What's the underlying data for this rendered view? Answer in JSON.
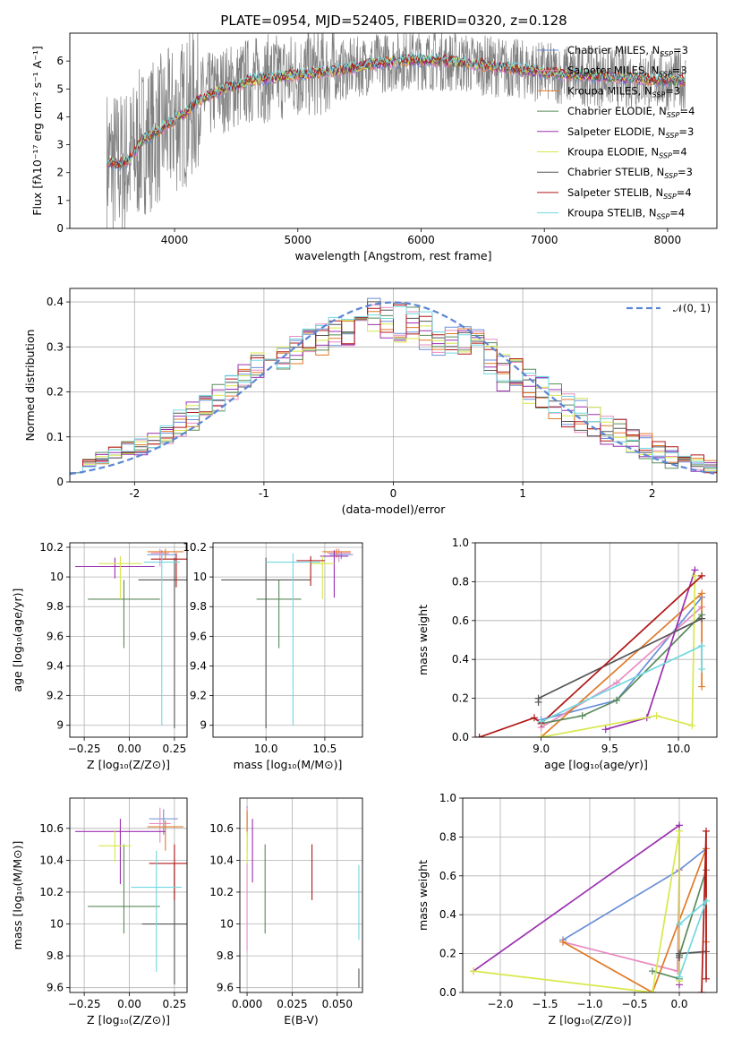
{
  "figure_title": "PLATE=0954, MJD=52405, FIBERID=0320, z=0.128",
  "colors": {
    "chabrier_miles": "#6a8fd8",
    "salpeter_miles": "#e88cc0",
    "kroupa_miles": "#e07a28",
    "chabrier_elodie": "#5a8a5a",
    "salpeter_elodie": "#9a30b0",
    "kroupa_elodie": "#d8e84a",
    "chabrier_stelib": "#555555",
    "salpeter_stelib": "#b01818",
    "kroupa_stelib": "#70d8e0",
    "observed": "#808080",
    "gaussian": "#5b86d6"
  },
  "legend_spectrum": [
    {
      "label": "Chabrier MILES, N",
      "sub": "SSP",
      "tail": "=3",
      "color": "#6a8fd8"
    },
    {
      "label": "Salpeter MILES, N",
      "sub": "SSP",
      "tail": "=3",
      "color": "#e88cc0"
    },
    {
      "label": "Kroupa MILES, N",
      "sub": "SSP",
      "tail": "=3",
      "color": "#e07a28"
    },
    {
      "label": "Chabrier ELODIE, N",
      "sub": "SSP",
      "tail": "=4",
      "color": "#5a8a5a"
    },
    {
      "label": "Salpeter ELODIE, N",
      "sub": "SSP",
      "tail": "=3",
      "color": "#9a30b0"
    },
    {
      "label": "Kroupa ELODIE, N",
      "sub": "SSP",
      "tail": "=4",
      "color": "#d8e84a"
    },
    {
      "label": "Chabrier STELIB, N",
      "sub": "SSP",
      "tail": "=3",
      "color": "#555555"
    },
    {
      "label": "Salpeter STELIB, N",
      "sub": "SSP",
      "tail": "=4",
      "color": "#b01818"
    },
    {
      "label": "Kroupa STELIB, N",
      "sub": "SSP",
      "tail": "=4",
      "color": "#70d8e0"
    }
  ],
  "legend_hist": {
    "label": "𝒩(0, 1)"
  },
  "chart_data": [
    {
      "id": "spectrum",
      "type": "line",
      "title": "PLATE=0954, MJD=52405, FIBERID=0320, z=0.128",
      "xlabel": "wavelength [Angstrom, rest frame]",
      "ylabel": "Flux [fλ10⁻¹⁷ erg cm⁻² s⁻¹ A⁻¹]",
      "xlim": [
        3150,
        8400
      ],
      "ylim": [
        0,
        7
      ],
      "xticks": [
        4000,
        5000,
        6000,
        7000,
        8000
      ],
      "yticks": [
        0,
        1,
        2,
        3,
        4,
        5,
        6
      ],
      "grid": false,
      "legend_position": "right",
      "model_continuum": {
        "x": [
          3450,
          3550,
          3650,
          3700,
          3750,
          3800,
          3900,
          4000,
          4100,
          4200,
          4300,
          4400,
          4500,
          4600,
          4800,
          5000,
          5200,
          5400,
          5600,
          5800,
          6000,
          6200,
          6400,
          6600,
          6800,
          7000,
          7200,
          7400,
          7600,
          7800,
          8000,
          8150
        ],
        "y": [
          2.4,
          2.3,
          2.5,
          2.9,
          3.2,
          3.3,
          3.6,
          3.9,
          4.2,
          4.6,
          4.8,
          5.0,
          5.1,
          5.3,
          5.4,
          5.5,
          5.6,
          5.7,
          5.9,
          6.0,
          6.05,
          6.0,
          5.9,
          5.8,
          5.7,
          5.6,
          5.5,
          5.45,
          5.4,
          5.35,
          5.3,
          5.3
        ]
      }
    },
    {
      "id": "residual_histogram",
      "type": "bar",
      "xlabel": "(data-model)/error",
      "ylabel": "Normed distribution",
      "xlim": [
        -2.5,
        2.5
      ],
      "ylim": [
        0,
        0.43
      ],
      "xticks": [
        -2,
        -1,
        0,
        1,
        2
      ],
      "yticks": [
        0.0,
        0.1,
        0.2,
        0.3,
        0.4
      ],
      "grid": true,
      "legend_position": "top-right",
      "reference_curve": {
        "name": "𝒩(0, 1)",
        "mean": 0,
        "sigma": 1
      },
      "bin_centers": [
        -2.45,
        -2.35,
        -2.25,
        -2.15,
        -2.05,
        -1.95,
        -1.85,
        -1.75,
        -1.65,
        -1.55,
        -1.45,
        -1.35,
        -1.25,
        -1.15,
        -1.05,
        -0.95,
        -0.85,
        -0.75,
        -0.65,
        -0.55,
        -0.45,
        -0.35,
        -0.25,
        -0.15,
        -0.05,
        0.05,
        0.15,
        0.25,
        0.35,
        0.45,
        0.55,
        0.65,
        0.75,
        0.85,
        0.95,
        1.05,
        1.15,
        1.25,
        1.35,
        1.45,
        1.55,
        1.65,
        1.75,
        1.85,
        1.95,
        2.05,
        2.15,
        2.25,
        2.35,
        2.45
      ],
      "envelope_high": [
        0.03,
        0.05,
        0.07,
        0.08,
        0.09,
        0.1,
        0.11,
        0.13,
        0.16,
        0.18,
        0.2,
        0.22,
        0.24,
        0.27,
        0.29,
        0.3,
        0.31,
        0.33,
        0.35,
        0.36,
        0.37,
        0.38,
        0.4,
        0.41,
        0.4,
        0.4,
        0.39,
        0.38,
        0.37,
        0.36,
        0.35,
        0.34,
        0.32,
        0.3,
        0.28,
        0.26,
        0.24,
        0.22,
        0.2,
        0.19,
        0.17,
        0.15,
        0.14,
        0.12,
        0.11,
        0.09,
        0.08,
        0.07,
        0.06,
        0.05
      ],
      "envelope_low": [
        0.02,
        0.03,
        0.04,
        0.05,
        0.06,
        0.06,
        0.07,
        0.08,
        0.09,
        0.11,
        0.13,
        0.15,
        0.18,
        0.21,
        0.23,
        0.24,
        0.25,
        0.26,
        0.27,
        0.28,
        0.29,
        0.3,
        0.32,
        0.33,
        0.32,
        0.31,
        0.31,
        0.29,
        0.28,
        0.27,
        0.26,
        0.24,
        0.22,
        0.2,
        0.18,
        0.17,
        0.15,
        0.13,
        0.12,
        0.1,
        0.09,
        0.08,
        0.07,
        0.06,
        0.05,
        0.04,
        0.03,
        0.03,
        0.02,
        0.02
      ]
    },
    {
      "id": "age_vs_Z",
      "type": "scatter",
      "xlabel": "Z [log₁₀(Z/Z⊙)]",
      "ylabel": "age  [log₁₀(age/yr)]",
      "xlim": [
        -0.33,
        0.32
      ],
      "ylim": [
        8.92,
        10.23
      ],
      "xticks": [
        -0.25,
        0.0,
        0.25
      ],
      "xticklabels": [
        "−0.25",
        "0.00",
        "0.25"
      ],
      "yticks": [
        9.0,
        9.2,
        9.4,
        9.6,
        9.8,
        10.0,
        10.2
      ],
      "grid": true,
      "errorbars": [
        {
          "color": "#6a8fd8",
          "x": 0.18,
          "y": 10.15,
          "xerr": 0.08,
          "ylo": 0.04,
          "yhi": 0.03
        },
        {
          "color": "#e88cc0",
          "x": 0.17,
          "y": 10.16,
          "xerr": 0.05,
          "ylo": 0.09,
          "yhi": 0.03
        },
        {
          "color": "#e07a28",
          "x": 0.2,
          "y": 10.17,
          "xerr": 0.1,
          "ylo": 0.05,
          "yhi": 0.02
        },
        {
          "color": "#5a8a5a",
          "x": -0.03,
          "y": 9.85,
          "xerr": 0.2,
          "ylo": 0.33,
          "yhi": 0.13
        },
        {
          "color": "#9a30b0",
          "x": -0.08,
          "y": 10.07,
          "xerr": 0.22,
          "ylo": 0.08,
          "yhi": 0.06
        },
        {
          "color": "#d8e84a",
          "x": -0.05,
          "y": 10.09,
          "xerr": 0.12,
          "ylo": 0.24,
          "yhi": 0.05
        },
        {
          "color": "#555555",
          "x": 0.25,
          "y": 9.98,
          "xerr": 0.2,
          "ylo": 1.0,
          "yhi": 0.15
        },
        {
          "color": "#b01818",
          "x": 0.26,
          "y": 10.12,
          "xerr": 0.14,
          "ylo": 0.19,
          "yhi": 0.04
        },
        {
          "color": "#70d8e0",
          "x": 0.18,
          "y": 10.1,
          "xerr": 0.1,
          "ylo": 1.1,
          "yhi": 0.06
        }
      ]
    },
    {
      "id": "age_vs_mass",
      "type": "scatter",
      "xlabel": "mass [log₁₀(M/M⊙)]",
      "xlim": [
        9.55,
        10.82
      ],
      "ylim": [
        8.92,
        10.23
      ],
      "xticks": [
        10.0,
        10.5
      ],
      "xticklabels": [
        "10.0",
        "10.5"
      ],
      "yticks": [
        9.0,
        9.2,
        9.4,
        9.6,
        9.8,
        10.0,
        10.2
      ],
      "grid": true,
      "errorbars": [
        {
          "color": "#6a8fd8",
          "x": 10.64,
          "y": 10.15,
          "xerr": 0.1,
          "ylo": 0.03,
          "yhi": 0.02
        },
        {
          "color": "#e88cc0",
          "x": 10.62,
          "y": 10.16,
          "xerr": 0.1,
          "ylo": 0.06,
          "yhi": 0.03
        },
        {
          "color": "#e07a28",
          "x": 10.6,
          "y": 10.17,
          "xerr": 0.12,
          "ylo": 0.04,
          "yhi": 0.02
        },
        {
          "color": "#5a8a5a",
          "x": 10.11,
          "y": 9.85,
          "xerr": 0.19,
          "ylo": 0.33,
          "yhi": 0.13
        },
        {
          "color": "#9a30b0",
          "x": 10.58,
          "y": 10.14,
          "xerr": 0.12,
          "ylo": 0.28,
          "yhi": 0.04
        },
        {
          "color": "#d8e84a",
          "x": 10.48,
          "y": 10.09,
          "xerr": 0.1,
          "ylo": 0.24,
          "yhi": 0.05
        },
        {
          "color": "#555555",
          "x": 10.0,
          "y": 9.98,
          "xerr": 0.38,
          "ylo": 1.0,
          "yhi": 0.15
        },
        {
          "color": "#b01818",
          "x": 10.38,
          "y": 10.11,
          "xerr": 0.12,
          "ylo": 0.17,
          "yhi": 0.03
        },
        {
          "color": "#70d8e0",
          "x": 10.23,
          "y": 10.1,
          "xerr": 0.23,
          "ylo": 1.1,
          "yhi": 0.06
        }
      ]
    },
    {
      "id": "weight_vs_age",
      "type": "line",
      "xlabel": "age  [log₁₀(age/yr)]",
      "ylabel": "mass weight",
      "xlim": [
        8.52,
        10.28
      ],
      "ylim": [
        0,
        1.0
      ],
      "xticks": [
        9.0,
        9.5,
        10.0
      ],
      "xticklabels": [
        "9.0",
        "9.5",
        "10.0"
      ],
      "yticks": [
        0.0,
        0.2,
        0.4,
        0.6,
        0.8,
        1.0
      ],
      "yticklabels": [
        "0.0",
        "0.2",
        "0.4",
        "0.6",
        "0.8",
        "1.0"
      ],
      "grid": true,
      "series": [
        {
          "color": "#6a8fd8",
          "x": [
            9.0,
            9.55,
            10.17
          ],
          "y": [
            0.09,
            0.19,
            0.72
          ]
        },
        {
          "color": "#e88cc0",
          "x": [
            9.0,
            9.55,
            10.17
          ],
          "y": [
            0.05,
            0.28,
            0.67
          ]
        },
        {
          "color": "#e07a28",
          "x": [
            9.0,
            10.17,
            10.17
          ],
          "y": [
            0.0,
            0.74,
            0.26
          ]
        },
        {
          "color": "#5a8a5a",
          "x": [
            9.0,
            9.3,
            9.55,
            10.17
          ],
          "y": [
            0.07,
            0.11,
            0.19,
            0.63
          ]
        },
        {
          "color": "#9a30b0",
          "x": [
            9.47,
            9.77,
            10.12
          ],
          "y": [
            0.04,
            0.1,
            0.86
          ]
        },
        {
          "color": "#d8e84a",
          "x": [
            9.0,
            9.84,
            10.1,
            10.12
          ],
          "y": [
            0.0,
            0.11,
            0.06,
            0.83
          ]
        },
        {
          "color": "#555555",
          "x": [
            8.98,
            8.98,
            10.17
          ],
          "y": [
            0.18,
            0.2,
            0.61
          ]
        },
        {
          "color": "#b01818",
          "x": [
            8.55,
            8.95,
            9.0,
            10.17
          ],
          "y": [
            0.0,
            0.1,
            0.07,
            0.83
          ]
        },
        {
          "color": "#70d8e0",
          "x": [
            9.0,
            10.17,
            10.17
          ],
          "y": [
            0.08,
            0.47,
            0.35
          ]
        }
      ]
    },
    {
      "id": "mass_vs_Z",
      "type": "scatter",
      "xlabel": "Z [log₁₀(Z/Z⊙)]",
      "ylabel": "mass [log₁₀(M/M⊙)]",
      "xlim": [
        -0.33,
        0.32
      ],
      "ylim": [
        9.57,
        10.79
      ],
      "xticks": [
        -0.25,
        0.0,
        0.25
      ],
      "xticklabels": [
        "−0.25",
        "0.00",
        "0.25"
      ],
      "yticks": [
        9.6,
        9.8,
        10.0,
        10.2,
        10.4,
        10.6
      ],
      "grid": true,
      "errorbars": [
        {
          "color": "#6a8fd8",
          "x": 0.19,
          "y": 10.66,
          "xerr": 0.08,
          "ylo": 0.1,
          "yhi": 0.06
        },
        {
          "color": "#e88cc0",
          "x": 0.17,
          "y": 10.63,
          "xerr": 0.06,
          "ylo": 0.12,
          "yhi": 0.1
        },
        {
          "color": "#e07a28",
          "x": 0.2,
          "y": 10.61,
          "xerr": 0.1,
          "ylo": 0.15,
          "yhi": 0.04
        },
        {
          "color": "#5a8a5a",
          "x": -0.03,
          "y": 10.11,
          "xerr": 0.2,
          "ylo": 0.17,
          "yhi": 0.39
        },
        {
          "color": "#9a30b0",
          "x": -0.05,
          "y": 10.58,
          "xerr": 0.25,
          "ylo": 0.33,
          "yhi": 0.08
        },
        {
          "color": "#d8e84a",
          "x": -0.08,
          "y": 10.49,
          "xerr": 0.09,
          "ylo": 0.1,
          "yhi": 0.1
        },
        {
          "color": "#555555",
          "x": 0.25,
          "y": 10.0,
          "xerr": 0.18,
          "ylo": 0.38,
          "yhi": 0.38
        },
        {
          "color": "#b01818",
          "x": 0.25,
          "y": 10.38,
          "xerr": 0.14,
          "ylo": 0.23,
          "yhi": 0.12
        },
        {
          "color": "#70d8e0",
          "x": 0.15,
          "y": 10.23,
          "xerr": 0.14,
          "ylo": 0.53,
          "yhi": 0.23
        }
      ]
    },
    {
      "id": "mass_vs_EBV",
      "type": "scatter",
      "xlabel": "E(B-V)",
      "xlim": [
        -0.004,
        0.064
      ],
      "ylim": [
        9.57,
        10.79
      ],
      "xticks": [
        0.0,
        0.025,
        0.05
      ],
      "xticklabels": [
        "0.000",
        "0.025",
        "0.050"
      ],
      "yticks": [
        9.6,
        9.8,
        10.0,
        10.2,
        10.4,
        10.6
      ],
      "grid": true,
      "errorbars": [
        {
          "color": "#6a8fd8",
          "x": 0.0,
          "y": 10.66,
          "xerr": 0.0,
          "ylo": 0.1,
          "yhi": 0.08
        },
        {
          "color": "#e88cc0",
          "x": 0.0,
          "y": 10.63,
          "xerr": 0.0,
          "ylo": 0.8,
          "yhi": 0.1
        },
        {
          "color": "#e07a28",
          "x": 0.0,
          "y": 10.61,
          "xerr": 0.0,
          "ylo": 0.15,
          "yhi": 0.1
        },
        {
          "color": "#5a8a5a",
          "x": 0.01,
          "y": 10.21,
          "xerr": 0.0,
          "ylo": 0.27,
          "yhi": 0.29
        },
        {
          "color": "#9a30b0",
          "x": 0.003,
          "y": 10.46,
          "xerr": 0.0,
          "ylo": 0.2,
          "yhi": 0.2
        },
        {
          "color": "#d8e84a",
          "x": 0.0,
          "y": 10.48,
          "xerr": 0.0,
          "ylo": 0.1,
          "yhi": 0.1
        },
        {
          "color": "#555555",
          "x": 0.062,
          "y": 9.66,
          "xerr": 0.0,
          "ylo": 0.06,
          "yhi": 0.06
        },
        {
          "color": "#b01818",
          "x": 0.036,
          "y": 10.33,
          "xerr": 0.0,
          "ylo": 0.18,
          "yhi": 0.17
        },
        {
          "color": "#70d8e0",
          "x": 0.062,
          "y": 10.0,
          "xerr": 0.0,
          "ylo": 0.1,
          "yhi": 0.37
        }
      ]
    },
    {
      "id": "weight_vs_Z",
      "type": "line",
      "xlabel": "Z [log₁₀(Z/Z⊙)]",
      "ylabel": "mass weight",
      "xlim": [
        -2.42,
        0.42
      ],
      "ylim": [
        0,
        1.0
      ],
      "xticks": [
        -2.0,
        -1.5,
        -1.0,
        -0.5,
        0.0
      ],
      "xticklabels": [
        "−2.0",
        "−1.5",
        "−1.0",
        "−0.5",
        "0.0"
      ],
      "yticks": [
        0.0,
        0.2,
        0.4,
        0.6,
        0.8,
        1.0
      ],
      "yticklabels": [
        "0.0",
        "0.2",
        "0.4",
        "0.6",
        "0.8",
        "1.0"
      ],
      "grid": true,
      "series": [
        {
          "color": "#6a8fd8",
          "x": [
            -1.3,
            0.0,
            0.3
          ],
          "y": [
            0.27,
            0.63,
            0.74
          ]
        },
        {
          "color": "#e88cc0",
          "x": [
            -1.3,
            -0.02,
            0.0
          ],
          "y": [
            0.26,
            0.11,
            0.63
          ]
        },
        {
          "color": "#e07a28",
          "x": [
            -1.3,
            -0.3,
            0.3,
            0.3
          ],
          "y": [
            0.26,
            0.0,
            0.74,
            0.26
          ]
        },
        {
          "color": "#5a8a5a",
          "x": [
            -0.3,
            0.0,
            0.0,
            0.3
          ],
          "y": [
            0.11,
            0.07,
            0.19,
            0.63
          ]
        },
        {
          "color": "#9a30b0",
          "x": [
            -2.3,
            0.0,
            0.0
          ],
          "y": [
            0.11,
            0.86,
            0.04
          ]
        },
        {
          "color": "#d8e84a",
          "x": [
            -2.3,
            -0.3,
            0.0,
            0.0
          ],
          "y": [
            0.11,
            0.0,
            0.83,
            0.06
          ]
        },
        {
          "color": "#555555",
          "x": [
            0.0,
            0.0,
            0.3
          ],
          "y": [
            0.18,
            0.2,
            0.21
          ]
        },
        {
          "color": "#b01818",
          "x": [
            0.25,
            0.3,
            0.3
          ],
          "y": [
            0.0,
            0.83,
            0.07
          ]
        },
        {
          "color": "#70d8e0",
          "x": [
            0.0,
            0.3,
            0.0
          ],
          "y": [
            0.35,
            0.47,
            0.08
          ]
        }
      ]
    }
  ]
}
